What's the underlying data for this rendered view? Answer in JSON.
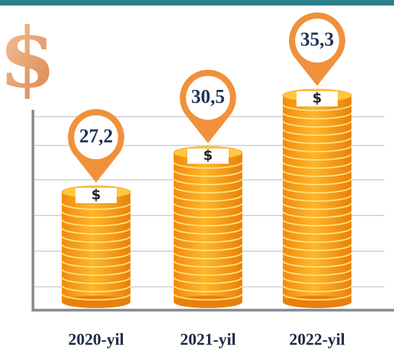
{
  "chart_data": {
    "type": "bar",
    "categories": [
      "2020-yil",
      "2021-yil",
      "2022-yil"
    ],
    "values": [
      27.2,
      30.5,
      35.3
    ],
    "value_labels": [
      "27,2",
      "30,5",
      "35,3"
    ],
    "coin_symbol": "$",
    "color": "#f7a51c",
    "ylim": [
      18,
      41
    ]
  }
}
